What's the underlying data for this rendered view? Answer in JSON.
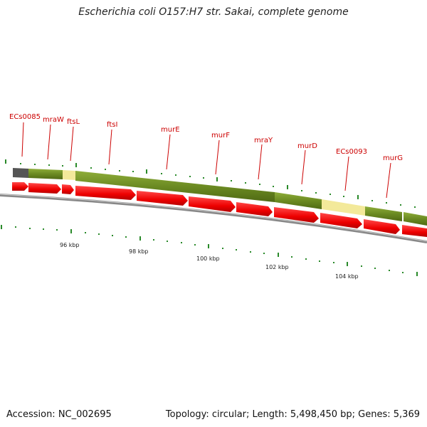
{
  "title": "Escherichia coli O157:H7 str. Sakai, complete genome",
  "footer": {
    "accession": "Accession: NC_002695",
    "summary": "Topology: circular; Length: 5,498,450 bp; Genes: 5,369"
  },
  "colors": {
    "gene_feature": "#6b8a22",
    "gene_feature_light": "#f3e99a",
    "cds_arrow": "#ee0000",
    "label": "#cc0000",
    "tick": "#2a8a2a",
    "backbone": "#777777"
  },
  "gene_labels": [
    "ECs0085",
    "mraW",
    "ftsL",
    "ftsI",
    "murE",
    "murF",
    "mraY",
    "murD",
    "ECs0093",
    "murG"
  ],
  "kbp_labels": [
    "96 kbp",
    "98 kbp",
    "100 kbp",
    "102 kbp",
    "104 kbp"
  ]
}
